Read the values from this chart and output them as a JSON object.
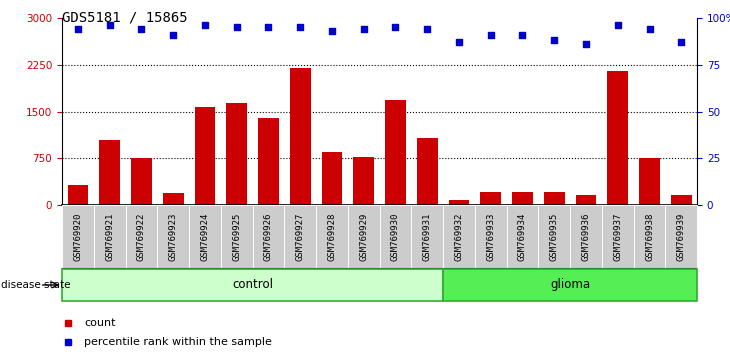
{
  "title": "GDS5181 / 15865",
  "samples": [
    "GSM769920",
    "GSM769921",
    "GSM769922",
    "GSM769923",
    "GSM769924",
    "GSM769925",
    "GSM769926",
    "GSM769927",
    "GSM769928",
    "GSM769929",
    "GSM769930",
    "GSM769931",
    "GSM769932",
    "GSM769933",
    "GSM769934",
    "GSM769935",
    "GSM769936",
    "GSM769937",
    "GSM769938",
    "GSM769939"
  ],
  "counts": [
    320,
    1050,
    760,
    200,
    1580,
    1630,
    1400,
    2190,
    850,
    780,
    1680,
    1080,
    90,
    220,
    210,
    210,
    170,
    2150,
    760,
    170
  ],
  "percentiles": [
    94,
    96,
    94,
    91,
    96,
    95,
    95,
    95,
    93,
    94,
    95,
    94,
    87,
    91,
    91,
    88,
    86,
    96,
    94,
    87
  ],
  "control_count": 12,
  "glioma_count": 8,
  "bar_color": "#cc0000",
  "dot_color": "#0000cc",
  "ylim_left": [
    0,
    3000
  ],
  "ylim_right": [
    0,
    100
  ],
  "yticks_left": [
    0,
    750,
    1500,
    2250,
    3000
  ],
  "ytick_labels_left": [
    "0",
    "750",
    "1500",
    "2250",
    "3000"
  ],
  "yticks_right": [
    0,
    25,
    50,
    75,
    100
  ],
  "ytick_labels_right": [
    "0",
    "25",
    "50",
    "75",
    "100%"
  ],
  "control_color": "#ccffcc",
  "glioma_color": "#55ee55",
  "bar_width": 0.65,
  "title_fontsize": 10,
  "tick_fontsize": 7.5,
  "cell_bg_color": "#cccccc",
  "cell_border_color": "#ffffff",
  "legend_bar_color": "#cc0000",
  "legend_dot_color": "#0000cc"
}
